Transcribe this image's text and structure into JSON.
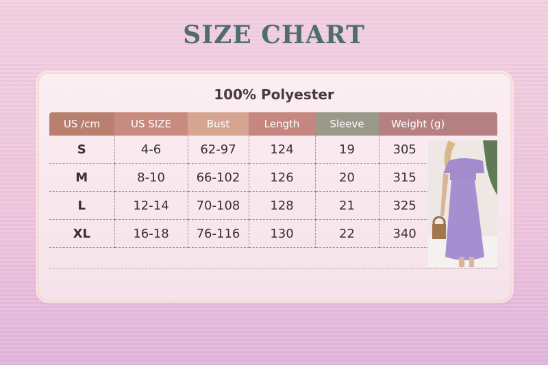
{
  "title": "SIZE CHART",
  "material": "100% Polyester",
  "table": {
    "headers": [
      "US /cm",
      "US SIZE",
      "Bust",
      "Length",
      "Sleeve",
      "Weight (g)"
    ],
    "header_colors": [
      "#b98070",
      "#c98a80",
      "#d6a592",
      "#c68780",
      "#9b998a",
      "#b68082"
    ],
    "rows": [
      [
        "S",
        "4-6",
        "62-97",
        "124",
        "19",
        "305"
      ],
      [
        "M",
        "8-10",
        "66-102",
        "126",
        "20",
        "315"
      ],
      [
        "L",
        "12-14",
        "70-108",
        "128",
        "21",
        "325"
      ],
      [
        "XL",
        "16-18",
        "76-116",
        "130",
        "22",
        "340"
      ]
    ]
  },
  "image": {
    "icon": "model-in-purple-dress-photo"
  }
}
